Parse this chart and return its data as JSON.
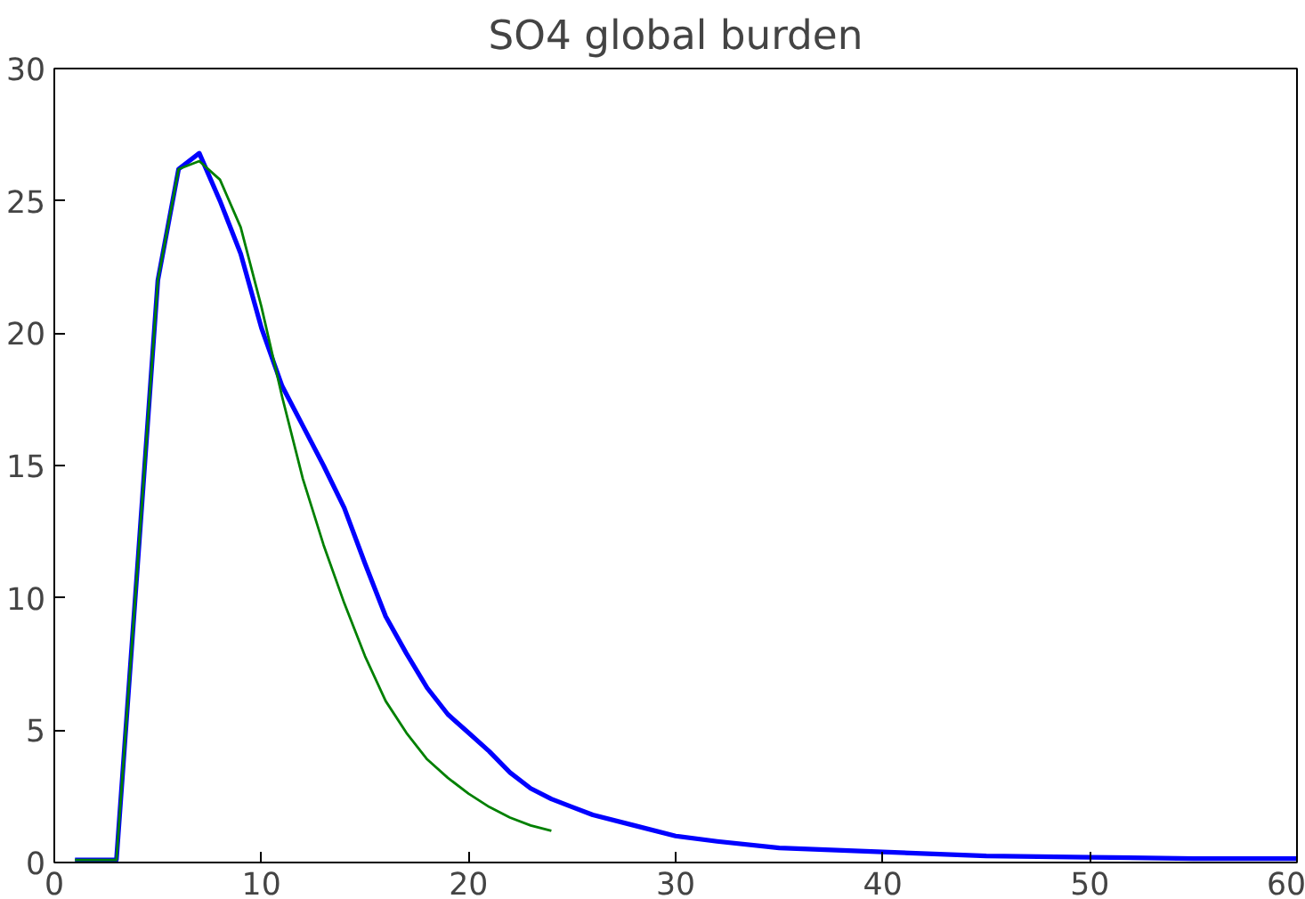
{
  "chart_data": {
    "type": "line",
    "title": "SO4 global burden",
    "xlim": [
      0,
      60
    ],
    "xticks": [
      0,
      10,
      20,
      30,
      40,
      50,
      60
    ],
    "ylim": [
      0,
      30
    ],
    "yticks": [
      0,
      5,
      10,
      15,
      20,
      25,
      30
    ],
    "grid": false,
    "line_style": "solid",
    "series": [
      {
        "color": "#0000ff",
        "x": [
          1,
          2,
          3,
          4,
          5,
          6,
          7,
          8,
          9,
          10,
          11,
          12,
          13,
          14,
          15,
          16,
          17,
          18,
          19,
          20,
          21,
          22,
          23,
          24,
          25,
          26,
          28,
          30,
          32,
          35,
          40,
          45,
          50,
          55,
          60
        ],
        "values": [
          0.1,
          0.1,
          0.1,
          11,
          22,
          26.2,
          26.8,
          25,
          23,
          20.2,
          18,
          16.5,
          15,
          13.4,
          11.3,
          9.3,
          7.9,
          6.6,
          5.6,
          4.9,
          4.2,
          3.4,
          2.8,
          2.4,
          2.1,
          1.8,
          1.4,
          1.0,
          0.8,
          0.55,
          0.4,
          0.25,
          0.2,
          0.15,
          0.15
        ]
      },
      {
        "color": "#008000",
        "x": [
          1,
          2,
          3,
          4,
          5,
          6,
          7,
          8,
          9,
          10,
          11,
          12,
          13,
          14,
          15,
          16,
          17,
          18,
          19,
          20,
          21,
          22,
          23,
          24
        ],
        "values": [
          0.1,
          0.1,
          0.1,
          11,
          22,
          26.2,
          26.5,
          25.8,
          24,
          21,
          17.6,
          14.5,
          12,
          9.8,
          7.8,
          6.1,
          4.9,
          3.9,
          3.2,
          2.6,
          2.1,
          1.7,
          1.4,
          1.2
        ]
      }
    ]
  }
}
